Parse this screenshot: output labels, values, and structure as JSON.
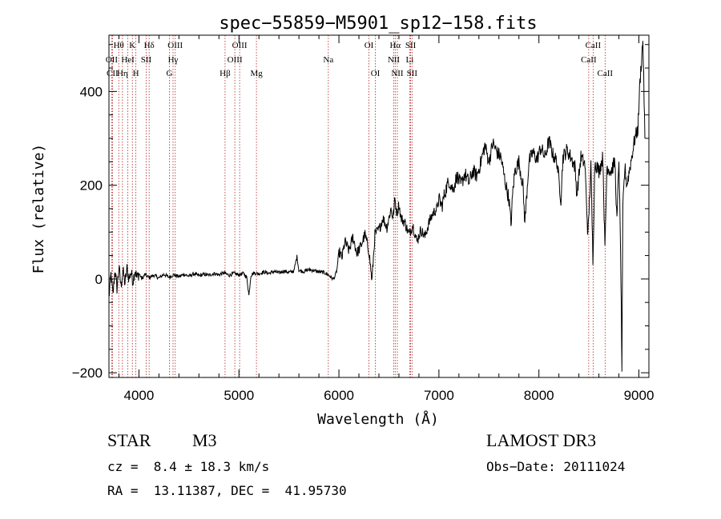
{
  "chart_data": {
    "type": "line",
    "title": "spec−55859−M5901_sp12−158.fits",
    "xlabel": "Wavelength (Å)",
    "ylabel": "Flux (relative)",
    "xlim": [
      3700,
      9100
    ],
    "ylim": [
      -210,
      520
    ],
    "x_ticks": [
      4000,
      5000,
      6000,
      7000,
      8000,
      9000
    ],
    "y_ticks": [
      -200,
      0,
      200,
      400
    ],
    "colors": {
      "spectrum": "#000000",
      "lines": "#b22222"
    },
    "spectral_lines": [
      {
        "label": "Hθ",
        "wave": 3798,
        "row": 0
      },
      {
        "label": "OII",
        "wave": 3727,
        "row": 1
      },
      {
        "label": "CII",
        "wave": 3735,
        "row": 2
      },
      {
        "label": "K",
        "wave": 3934,
        "row": 0
      },
      {
        "label": "HeI",
        "wave": 3889,
        "row": 1
      },
      {
        "label": "Hη",
        "wave": 3835,
        "row": 2
      },
      {
        "label": "H",
        "wave": 3969,
        "row": 2
      },
      {
        "label": "SII",
        "wave": 4072,
        "row": 1
      },
      {
        "label": "Hδ",
        "wave": 4102,
        "row": 0
      },
      {
        "label": "OIII",
        "wave": 4363,
        "row": 0
      },
      {
        "label": "Hγ",
        "wave": 4341,
        "row": 1
      },
      {
        "label": "G",
        "wave": 4305,
        "row": 2
      },
      {
        "label": "Hβ",
        "wave": 4861,
        "row": 2
      },
      {
        "label": "OIII",
        "wave": 5007,
        "row": 0
      },
      {
        "label": "OIII",
        "wave": 4959,
        "row": 1
      },
      {
        "label": "Mg",
        "wave": 5175,
        "row": 2
      },
      {
        "label": "Na",
        "wave": 5894,
        "row": 1
      },
      {
        "label": "OI",
        "wave": 6300,
        "row": 0
      },
      {
        "label": "OI",
        "wave": 6364,
        "row": 2
      },
      {
        "label": "Hα",
        "wave": 6563,
        "row": 0
      },
      {
        "label": "NII",
        "wave": 6548,
        "row": 1
      },
      {
        "label": "NII",
        "wave": 6584,
        "row": 2
      },
      {
        "label": "SII",
        "wave": 6717,
        "row": 0
      },
      {
        "label": "Li",
        "wave": 6708,
        "row": 1
      },
      {
        "label": "SII",
        "wave": 6731,
        "row": 2
      },
      {
        "label": "CaII",
        "wave": 8542,
        "row": 0
      },
      {
        "label": "CaII",
        "wave": 8498,
        "row": 1
      },
      {
        "label": "CaII",
        "wave": 8662,
        "row": 2
      }
    ],
    "series": [
      {
        "name": "spectrum",
        "points": [
          [
            3700,
            -40
          ],
          [
            3720,
            10
          ],
          [
            3740,
            -35
          ],
          [
            3760,
            20
          ],
          [
            3780,
            -20
          ],
          [
            3800,
            25
          ],
          [
            3820,
            -15
          ],
          [
            3840,
            18
          ],
          [
            3860,
            -10
          ],
          [
            3880,
            22
          ],
          [
            3900,
            0
          ],
          [
            3920,
            15
          ],
          [
            3940,
            -5
          ],
          [
            3960,
            20
          ],
          [
            3980,
            2
          ],
          [
            4000,
            12
          ],
          [
            4030,
            0
          ],
          [
            4060,
            10
          ],
          [
            4100,
            3
          ],
          [
            4150,
            8
          ],
          [
            4200,
            2
          ],
          [
            4250,
            10
          ],
          [
            4300,
            4
          ],
          [
            4350,
            9
          ],
          [
            4400,
            5
          ],
          [
            4450,
            10
          ],
          [
            4500,
            6
          ],
          [
            4550,
            11
          ],
          [
            4600,
            7
          ],
          [
            4650,
            10
          ],
          [
            4700,
            8
          ],
          [
            4750,
            12
          ],
          [
            4800,
            9
          ],
          [
            4850,
            13
          ],
          [
            4900,
            8
          ],
          [
            4950,
            12
          ],
          [
            5000,
            9
          ],
          [
            5050,
            12
          ],
          [
            5080,
            2
          ],
          [
            5100,
            -35
          ],
          [
            5120,
            8
          ],
          [
            5150,
            13
          ],
          [
            5200,
            11
          ],
          [
            5250,
            15
          ],
          [
            5300,
            12
          ],
          [
            5350,
            16
          ],
          [
            5400,
            13
          ],
          [
            5450,
            17
          ],
          [
            5500,
            14
          ],
          [
            5550,
            17
          ],
          [
            5580,
            48
          ],
          [
            5600,
            18
          ],
          [
            5650,
            16
          ],
          [
            5700,
            20
          ],
          [
            5750,
            18
          ],
          [
            5800,
            15
          ],
          [
            5850,
            14
          ],
          [
            5900,
            8
          ],
          [
            5940,
            0
          ],
          [
            5960,
            5
          ],
          [
            5980,
            20
          ],
          [
            6000,
            60
          ],
          [
            6030,
            45
          ],
          [
            6060,
            80
          ],
          [
            6100,
            60
          ],
          [
            6140,
            90
          ],
          [
            6180,
            55
          ],
          [
            6220,
            70
          ],
          [
            6260,
            95
          ],
          [
            6300,
            60
          ],
          [
            6330,
            -5
          ],
          [
            6360,
            95
          ],
          [
            6400,
            105
          ],
          [
            6440,
            130
          ],
          [
            6480,
            110
          ],
          [
            6520,
            150
          ],
          [
            6540,
            130
          ],
          [
            6560,
            170
          ],
          [
            6580,
            140
          ],
          [
            6600,
            160
          ],
          [
            6620,
            130
          ],
          [
            6660,
            120
          ],
          [
            6700,
            95
          ],
          [
            6740,
            115
          ],
          [
            6780,
            80
          ],
          [
            6820,
            105
          ],
          [
            6860,
            90
          ],
          [
            6900,
            120
          ],
          [
            6940,
            140
          ],
          [
            6980,
            150
          ],
          [
            7000,
            170
          ],
          [
            7030,
            155
          ],
          [
            7060,
            185
          ],
          [
            7100,
            210
          ],
          [
            7140,
            190
          ],
          [
            7180,
            220
          ],
          [
            7220,
            200
          ],
          [
            7260,
            225
          ],
          [
            7300,
            205
          ],
          [
            7340,
            230
          ],
          [
            7380,
            220
          ],
          [
            7420,
            250
          ],
          [
            7460,
            285
          ],
          [
            7500,
            250
          ],
          [
            7540,
            290
          ],
          [
            7580,
            270
          ],
          [
            7620,
            260
          ],
          [
            7660,
            210
          ],
          [
            7700,
            170
          ],
          [
            7720,
            115
          ],
          [
            7740,
            190
          ],
          [
            7760,
            230
          ],
          [
            7800,
            250
          ],
          [
            7840,
            200
          ],
          [
            7860,
            120
          ],
          [
            7900,
            250
          ],
          [
            7940,
            270
          ],
          [
            7980,
            255
          ],
          [
            8020,
            280
          ],
          [
            8060,
            260
          ],
          [
            8100,
            295
          ],
          [
            8140,
            265
          ],
          [
            8180,
            250
          ],
          [
            8220,
            170
          ],
          [
            8240,
            260
          ],
          [
            8280,
            275
          ],
          [
            8320,
            260
          ],
          [
            8360,
            240
          ],
          [
            8380,
            180
          ],
          [
            8420,
            260
          ],
          [
            8460,
            245
          ],
          [
            8490,
            90
          ],
          [
            8520,
            240
          ],
          [
            8540,
            40
          ],
          [
            8560,
            250
          ],
          [
            8600,
            230
          ],
          [
            8640,
            260
          ],
          [
            8660,
            60
          ],
          [
            8680,
            240
          ],
          [
            8720,
            230
          ],
          [
            8760,
            250
          ],
          [
            8780,
            120
          ],
          [
            8800,
            260
          ],
          [
            8820,
            0
          ],
          [
            8830,
            -190
          ],
          [
            8840,
            150
          ],
          [
            8860,
            240
          ],
          [
            8880,
            200
          ],
          [
            8920,
            250
          ],
          [
            8960,
            300
          ],
          [
            8990,
            320
          ],
          [
            9010,
            420
          ],
          [
            9030,
            480
          ],
          [
            9040,
            510
          ],
          [
            9060,
            300
          ]
        ]
      }
    ]
  },
  "info": {
    "object_type": "STAR",
    "subclass": "M3",
    "survey": "LAMOST DR3",
    "redshift": "cz =  8.4 ± 18.3 km/s",
    "obs_date": "Obs−Date: 20111024",
    "coords": "RA =  13.11387, DEC =  41.95730"
  }
}
